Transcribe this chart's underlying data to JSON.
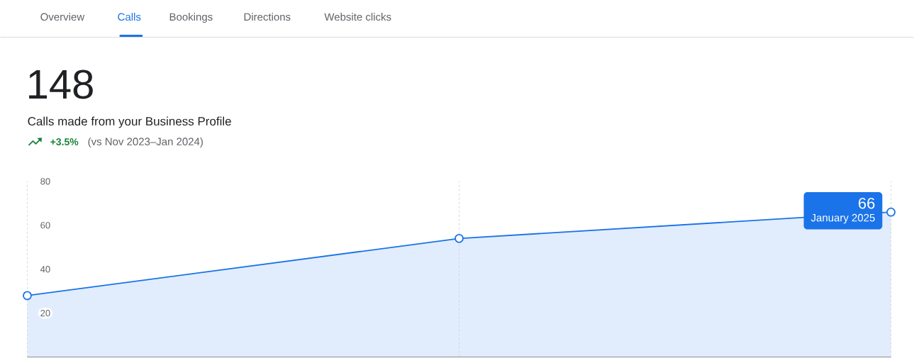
{
  "chart_data": {
    "type": "area",
    "title": "148",
    "subtitle": "Calls made from your Business Profile",
    "annotations": [
      "Overview",
      "Calls",
      "Bookings",
      "Directions",
      "Website clicks",
      "+3.5%",
      "(vs Nov 2023–Jan 2024)",
      "January 2025"
    ],
    "categories": [
      null,
      null,
      null
    ],
    "series": [
      {
        "color": "#1a73e8",
        "values": [
          28,
          54,
          66
        ],
        "value_labels": [
          null,
          null,
          "66"
        ]
      }
    ],
    "ylim": [
      0,
      80
    ],
    "yticks": [
      20,
      40,
      60,
      80
    ],
    "grid": "x",
    "tick_labels": "y",
    "marker": "circle",
    "line_style": "solid"
  }
}
